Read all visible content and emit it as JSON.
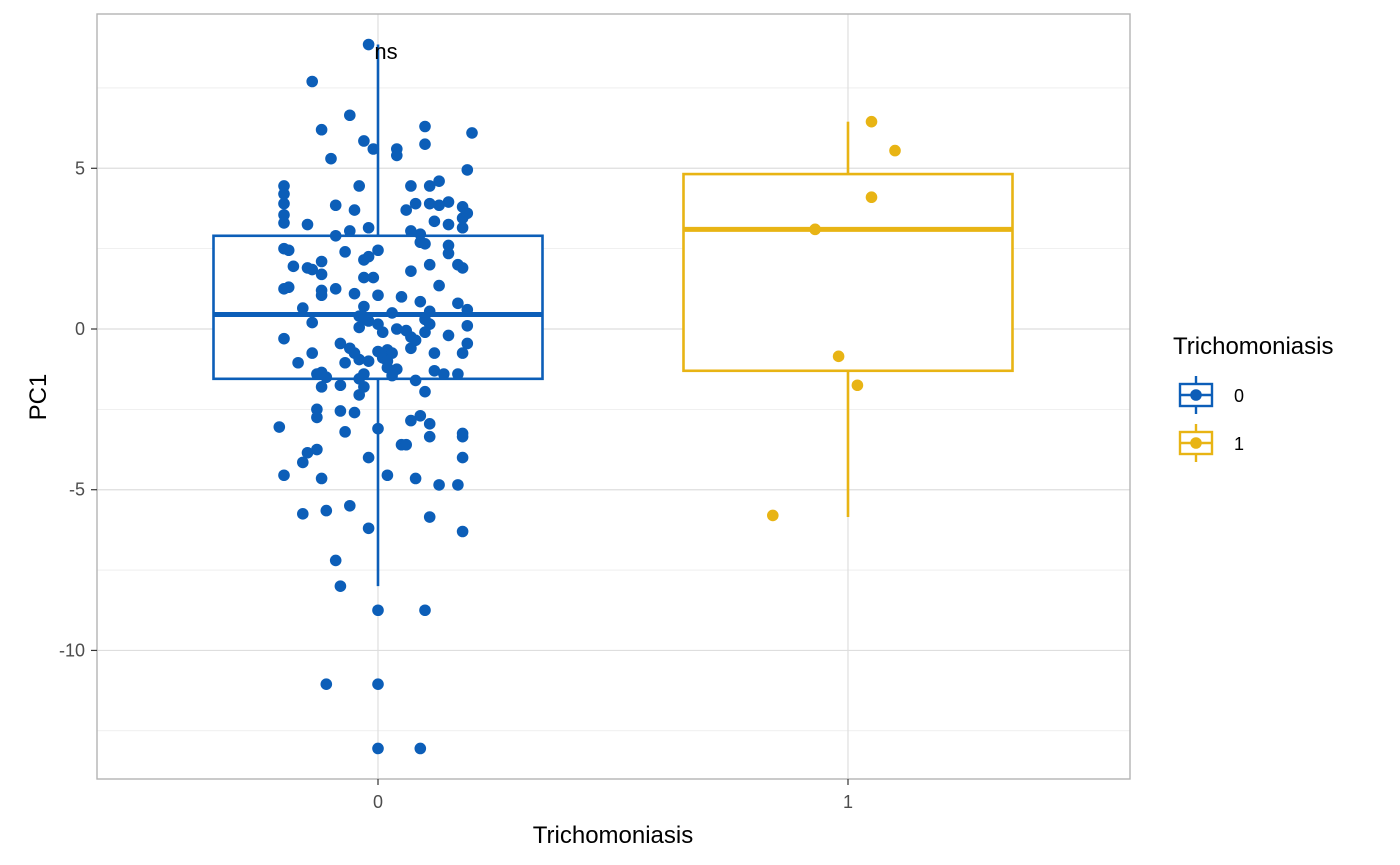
{
  "chart_data": {
    "type": "boxplot",
    "xlabel": "Trichomoniasis",
    "ylabel": "PC1",
    "categories": [
      "0",
      "1"
    ],
    "ylim": [
      -14,
      9.8
    ],
    "yticks": [
      -10,
      -5,
      0,
      5
    ],
    "ytick_labels": [
      "-10",
      "-5",
      "0",
      "5"
    ],
    "grid": true,
    "annotation": "ns",
    "legend": {
      "title": "Trichomoniasis",
      "position": "right",
      "entries": [
        "0",
        "1"
      ]
    },
    "colors": {
      "0": "#0C5EB8",
      "1": "#E8B414"
    },
    "series": [
      {
        "name": "0",
        "box": {
          "min": -8,
          "q1": -1.55,
          "median": 0.45,
          "q3": 2.9,
          "max": 8.85
        },
        "points": [
          [
            -0.02,
            8.85
          ],
          [
            -0.14,
            7.7
          ],
          [
            -0.06,
            6.65
          ],
          [
            -0.12,
            6.2
          ],
          [
            0.2,
            6.1
          ],
          [
            0.1,
            6.3
          ],
          [
            -0.03,
            5.85
          ],
          [
            0.1,
            5.75
          ],
          [
            -0.01,
            5.6
          ],
          [
            0.04,
            5.6
          ],
          [
            0.04,
            5.4
          ],
          [
            -0.1,
            5.3
          ],
          [
            0.19,
            4.95
          ],
          [
            0.13,
            4.6
          ],
          [
            -0.04,
            4.45
          ],
          [
            0.07,
            4.45
          ],
          [
            0.11,
            4.45
          ],
          [
            -0.2,
            4.45
          ],
          [
            -0.2,
            4.2
          ],
          [
            0.08,
            3.9
          ],
          [
            0.11,
            3.9
          ],
          [
            -0.2,
            3.9
          ],
          [
            0.15,
            3.95
          ],
          [
            0.13,
            3.85
          ],
          [
            -0.09,
            3.85
          ],
          [
            -0.05,
            3.7
          ],
          [
            0.06,
            3.7
          ],
          [
            0.18,
            3.8
          ],
          [
            0.19,
            3.6
          ],
          [
            -0.2,
            3.55
          ],
          [
            0.18,
            3.45
          ],
          [
            -0.2,
            3.3
          ],
          [
            -0.15,
            3.25
          ],
          [
            0.12,
            3.35
          ],
          [
            0.15,
            3.25
          ],
          [
            0.18,
            3.15
          ],
          [
            -0.02,
            3.15
          ],
          [
            -0.09,
            2.9
          ],
          [
            -0.06,
            3.05
          ],
          [
            0.07,
            3.05
          ],
          [
            0.09,
            2.95
          ],
          [
            0.09,
            2.7
          ],
          [
            0.1,
            2.65
          ],
          [
            -0.2,
            2.5
          ],
          [
            0.15,
            2.6
          ],
          [
            -0.19,
            2.45
          ],
          [
            -0.07,
            2.4
          ],
          [
            0.0,
            2.45
          ],
          [
            0.15,
            2.35
          ],
          [
            -0.02,
            2.25
          ],
          [
            -0.03,
            2.15
          ],
          [
            -0.12,
            2.1
          ],
          [
            0.17,
            2.0
          ],
          [
            0.11,
            2.0
          ],
          [
            0.18,
            1.9
          ],
          [
            -0.18,
            1.95
          ],
          [
            -0.15,
            1.9
          ],
          [
            -0.14,
            1.85
          ],
          [
            0.07,
            1.8
          ],
          [
            -0.12,
            1.7
          ],
          [
            -0.03,
            1.6
          ],
          [
            -0.01,
            1.6
          ],
          [
            0.13,
            1.35
          ],
          [
            -0.19,
            1.3
          ],
          [
            -0.2,
            1.25
          ],
          [
            -0.09,
            1.25
          ],
          [
            -0.12,
            1.2
          ],
          [
            -0.05,
            1.1
          ],
          [
            0.0,
            1.05
          ],
          [
            -0.12,
            1.05
          ],
          [
            0.05,
            1.0
          ],
          [
            0.09,
            0.85
          ],
          [
            0.17,
            0.8
          ],
          [
            -0.16,
            0.65
          ],
          [
            0.19,
            0.6
          ],
          [
            -0.03,
            0.7
          ],
          [
            0.11,
            0.55
          ],
          [
            0.03,
            0.5
          ],
          [
            -0.04,
            0.4
          ],
          [
            -0.03,
            0.3
          ],
          [
            -0.02,
            0.25
          ],
          [
            0.1,
            0.3
          ],
          [
            -0.14,
            0.2
          ],
          [
            0.0,
            0.15
          ],
          [
            0.11,
            0.15
          ],
          [
            0.19,
            0.1
          ],
          [
            -0.04,
            0.05
          ],
          [
            0.04,
            0.0
          ],
          [
            0.06,
            -0.05
          ],
          [
            0.01,
            -0.1
          ],
          [
            0.1,
            -0.1
          ],
          [
            0.15,
            -0.2
          ],
          [
            0.07,
            -0.25
          ],
          [
            -0.2,
            -0.3
          ],
          [
            0.08,
            -0.35
          ],
          [
            -0.08,
            -0.45
          ],
          [
            0.19,
            -0.45
          ],
          [
            -0.06,
            -0.6
          ],
          [
            0.07,
            -0.6
          ],
          [
            0.02,
            -0.65
          ],
          [
            0.0,
            -0.7
          ],
          [
            -0.05,
            -0.75
          ],
          [
            -0.14,
            -0.75
          ],
          [
            0.03,
            -0.75
          ],
          [
            0.12,
            -0.75
          ],
          [
            0.18,
            -0.75
          ],
          [
            -0.04,
            -0.95
          ],
          [
            0.01,
            -0.9
          ],
          [
            0.02,
            -1.0
          ],
          [
            -0.02,
            -1.0
          ],
          [
            -0.07,
            -1.05
          ],
          [
            -0.17,
            -1.05
          ],
          [
            0.02,
            -1.2
          ],
          [
            0.04,
            -1.25
          ],
          [
            -0.12,
            -1.35
          ],
          [
            0.12,
            -1.3
          ],
          [
            0.14,
            -1.4
          ],
          [
            -0.13,
            -1.4
          ],
          [
            0.03,
            -1.45
          ],
          [
            -0.03,
            -1.4
          ],
          [
            0.17,
            -1.4
          ],
          [
            -0.11,
            -1.5
          ],
          [
            -0.04,
            -1.55
          ],
          [
            0.08,
            -1.6
          ],
          [
            -0.08,
            -1.75
          ],
          [
            -0.12,
            -1.8
          ],
          [
            -0.03,
            -1.8
          ],
          [
            -0.04,
            -2.05
          ],
          [
            0.1,
            -1.95
          ],
          [
            -0.13,
            -2.5
          ],
          [
            -0.08,
            -2.55
          ],
          [
            0.09,
            -2.7
          ],
          [
            -0.05,
            -2.6
          ],
          [
            -0.13,
            -2.75
          ],
          [
            0.11,
            -2.95
          ],
          [
            0.07,
            -2.85
          ],
          [
            -0.21,
            -3.05
          ],
          [
            -0.07,
            -3.2
          ],
          [
            0.0,
            -3.1
          ],
          [
            0.18,
            -3.25
          ],
          [
            0.18,
            -3.35
          ],
          [
            0.11,
            -3.35
          ],
          [
            0.05,
            -3.6
          ],
          [
            0.06,
            -3.6
          ],
          [
            -0.13,
            -3.75
          ],
          [
            -0.15,
            -3.85
          ],
          [
            -0.02,
            -4.0
          ],
          [
            0.18,
            -4.0
          ],
          [
            -0.16,
            -4.15
          ],
          [
            -0.2,
            -4.55
          ],
          [
            0.02,
            -4.55
          ],
          [
            -0.12,
            -4.65
          ],
          [
            0.08,
            -4.65
          ],
          [
            0.13,
            -4.85
          ],
          [
            0.17,
            -4.85
          ],
          [
            -0.06,
            -5.5
          ],
          [
            -0.11,
            -5.65
          ],
          [
            -0.16,
            -5.75
          ],
          [
            0.11,
            -5.85
          ],
          [
            -0.02,
            -6.2
          ],
          [
            0.18,
            -6.3
          ],
          [
            -0.09,
            -7.2
          ],
          [
            -0.08,
            -8.0
          ],
          [
            0.0,
            -8.75
          ],
          [
            0.1,
            -8.75
          ],
          [
            -0.11,
            -11.05
          ],
          [
            0.0,
            -11.05
          ],
          [
            0.0,
            -13.05
          ],
          [
            0.09,
            -13.05
          ]
        ]
      },
      {
        "name": "1",
        "box": {
          "min": -5.85,
          "q1": -1.3,
          "median": 3.1,
          "q3": 4.82,
          "max": 6.45
        },
        "points": [
          [
            1.05,
            6.45
          ],
          [
            1.1,
            5.55
          ],
          [
            1.05,
            4.1
          ],
          [
            0.93,
            3.1
          ],
          [
            0.98,
            -0.85
          ],
          [
            1.02,
            -1.75
          ],
          [
            0.84,
            -5.8
          ]
        ]
      }
    ]
  }
}
